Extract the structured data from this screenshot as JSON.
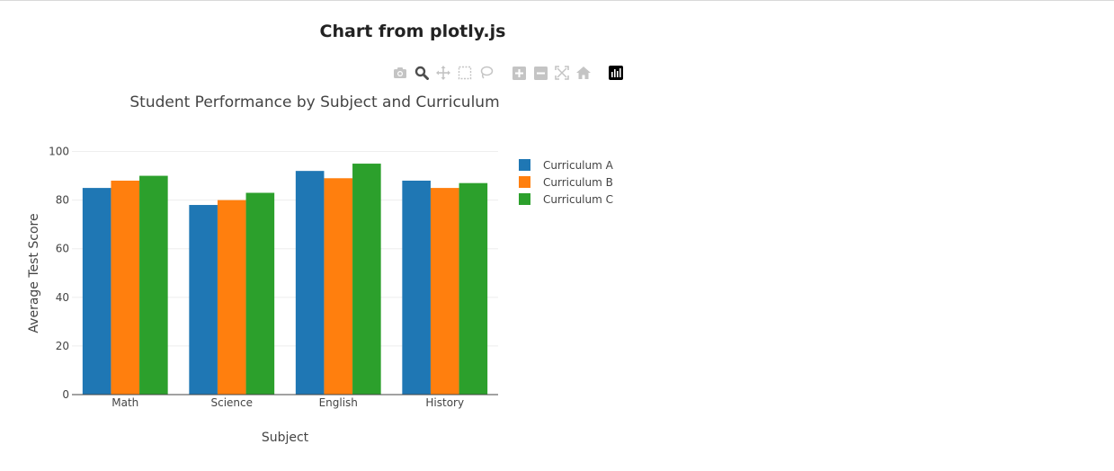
{
  "page": {
    "heading": "Chart from plotly.js"
  },
  "modebar": {
    "buttons": [
      {
        "name": "camera-icon",
        "color": "#c4c4c4"
      },
      {
        "name": "zoom-icon",
        "color": "#4d4d4d"
      },
      {
        "name": "pan-icon",
        "color": "#c4c4c4"
      },
      {
        "name": "box-select-icon",
        "color": "#c4c4c4"
      },
      {
        "name": "lasso-select-icon",
        "color": "#c4c4c4"
      },
      {
        "name": "zoom-in-icon",
        "color": "#c4c4c4"
      },
      {
        "name": "zoom-out-icon",
        "color": "#c4c4c4"
      },
      {
        "name": "autoscale-icon",
        "color": "#c4c4c4"
      },
      {
        "name": "reset-axes-icon",
        "color": "#c4c4c4"
      },
      {
        "name": "plotly-logo-icon",
        "color": "#000000"
      }
    ]
  },
  "chart_data": {
    "type": "bar",
    "title": "Student Performance by Subject and Curriculum",
    "xlabel": "Subject",
    "ylabel": "Average Test Score",
    "categories": [
      "Math",
      "Science",
      "English",
      "History"
    ],
    "series": [
      {
        "name": "Curriculum A",
        "color": "#1f77b4",
        "values": [
          85,
          78,
          92,
          88
        ]
      },
      {
        "name": "Curriculum B",
        "color": "#ff7f0e",
        "values": [
          88,
          80,
          89,
          85
        ]
      },
      {
        "name": "Curriculum C",
        "color": "#2ca02c",
        "values": [
          90,
          83,
          95,
          87
        ]
      }
    ],
    "ylim": [
      0,
      105
    ],
    "yticks": [
      0,
      20,
      40,
      60,
      80,
      100
    ],
    "grid": true,
    "legend": "right"
  }
}
